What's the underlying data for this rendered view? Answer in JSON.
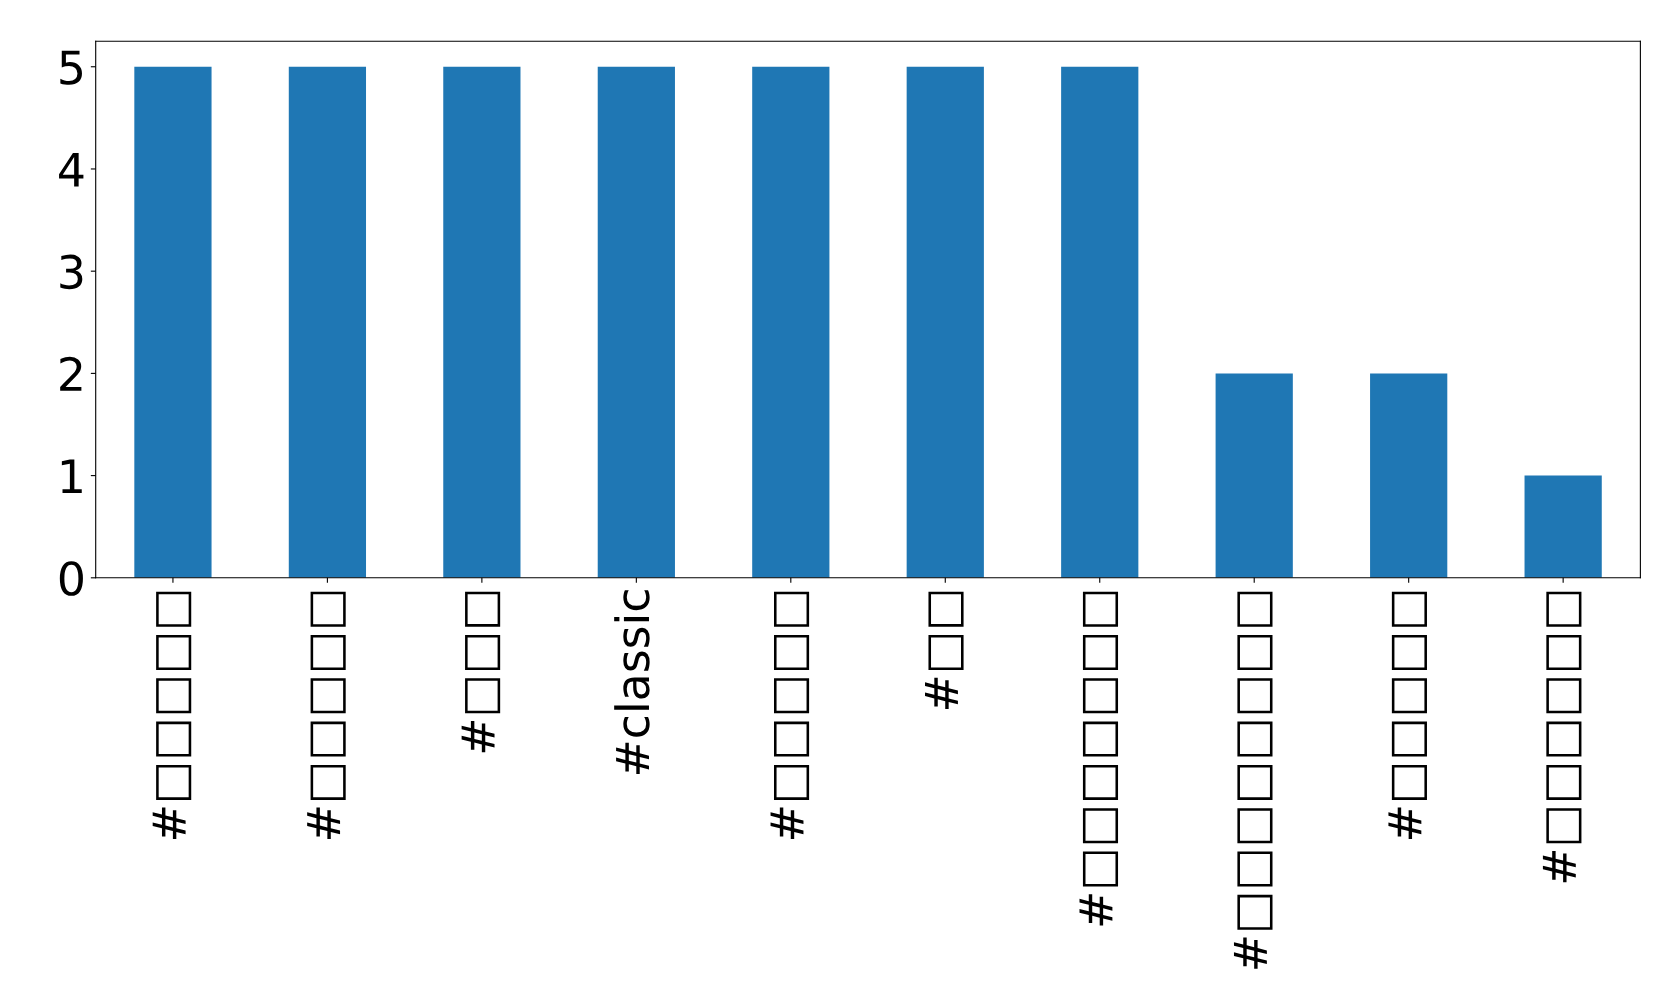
{
  "chart_data": {
    "type": "bar",
    "categories": [
      "#□□□□□",
      "#□□□□□",
      "#□□□",
      "#classic",
      "#□□□□□",
      "#□□",
      "#□□□□□□□",
      "#□□□□□□□□",
      "#□□□□□",
      "#□□□□□□"
    ],
    "values": [
      5,
      5,
      5,
      5,
      5,
      5,
      5,
      2,
      2,
      1
    ],
    "color": "#1f77b4",
    "ylim": [
      0,
      5.25
    ],
    "yticks": [
      0,
      1,
      2,
      3,
      4,
      5
    ],
    "grid": false
  }
}
